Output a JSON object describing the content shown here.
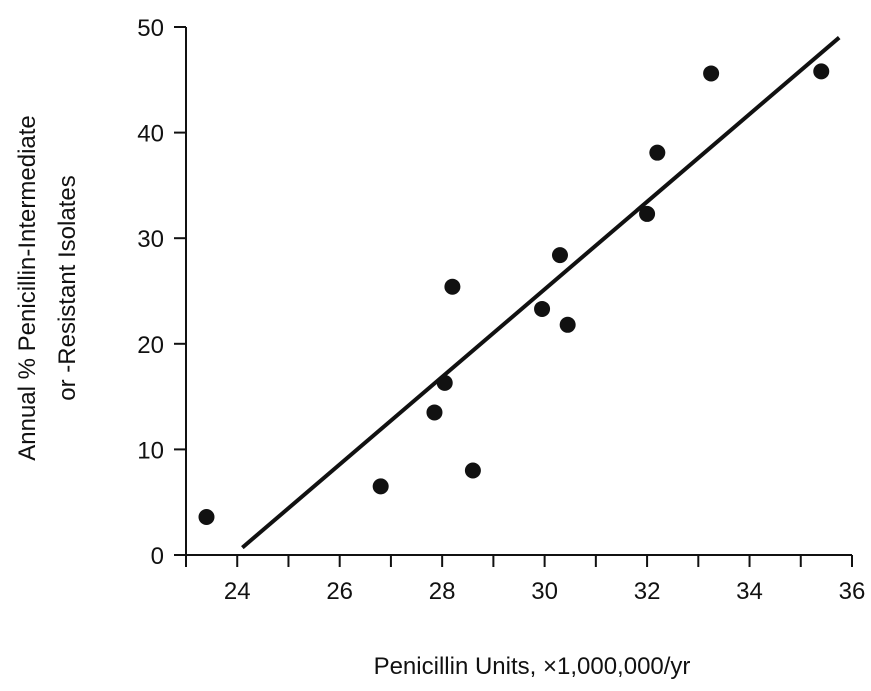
{
  "chart_data": {
    "type": "scatter",
    "title": "",
    "xlabel": "Penicillin Units, ×1,000,000/yr",
    "ylabel_lines": [
      "Annual % Penicillin-Intermediate",
      "or -Resistant Isolates"
    ],
    "xlim": [
      23,
      36
    ],
    "ylim": [
      0,
      50
    ],
    "x_major_ticks": [
      24,
      26,
      28,
      30,
      32,
      34,
      36
    ],
    "x_minor_ticks": [
      23,
      25,
      27,
      29,
      31,
      33,
      35
    ],
    "y_ticks": [
      0,
      10,
      20,
      30,
      40,
      50
    ],
    "grid": false,
    "legend": "none",
    "colors": {
      "marks": "#111111",
      "axes": "#111111"
    },
    "points": [
      {
        "x": 23.4,
        "y": 3.6
      },
      {
        "x": 26.8,
        "y": 6.5
      },
      {
        "x": 27.85,
        "y": 13.5
      },
      {
        "x": 28.05,
        "y": 16.3
      },
      {
        "x": 28.2,
        "y": 25.4
      },
      {
        "x": 28.6,
        "y": 8.0
      },
      {
        "x": 29.95,
        "y": 23.3
      },
      {
        "x": 30.3,
        "y": 28.4
      },
      {
        "x": 30.45,
        "y": 21.8
      },
      {
        "x": 32.0,
        "y": 32.3
      },
      {
        "x": 32.2,
        "y": 38.1
      },
      {
        "x": 33.25,
        "y": 45.6
      },
      {
        "x": 35.4,
        "y": 45.8
      }
    ],
    "trendline": {
      "x1": 24.1,
      "y1": 0.7,
      "x2": 35.75,
      "y2": 49.0
    }
  }
}
